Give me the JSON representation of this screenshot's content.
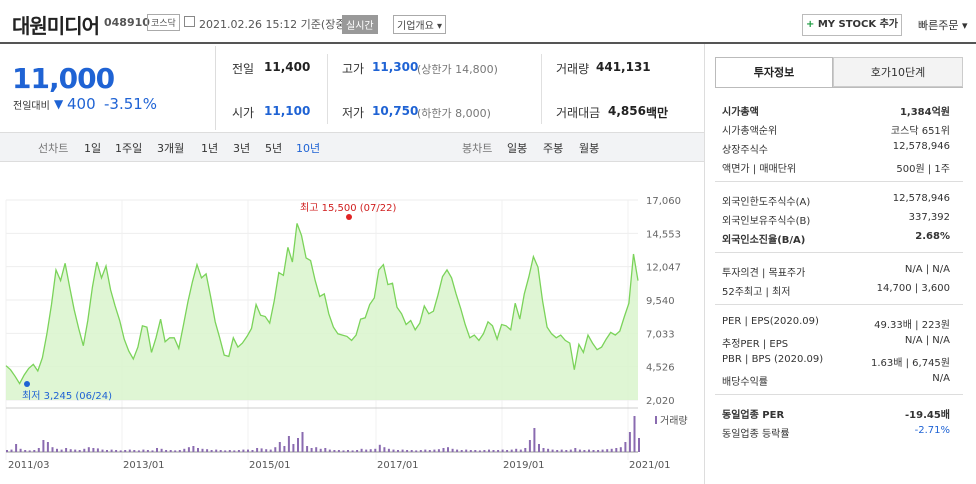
{
  "header": {
    "stock_name": "대원미디어",
    "stock_code": "048910",
    "market": "코스닥",
    "timestamp": "2021.02.26 15:12 기준(장중)",
    "realtime": "실시간",
    "company_info": "기업개요 ▾",
    "my_stock_label": "MY STOCK 추가",
    "quick_order": "빠른주문 ▾"
  },
  "price": {
    "current": "11,000",
    "change_label": "전일대비",
    "change_value": "400",
    "change_pct": "-3.51%"
  },
  "quote": {
    "prev_label": "전일",
    "prev": "11,400",
    "high_label": "고가",
    "high": "11,300",
    "upper_limit": "(상한가 14,800)",
    "volume_label": "거래량",
    "volume": "441,131",
    "open_label": "시가",
    "open": "11,100",
    "low_label": "저가",
    "low": "10,750",
    "lower_limit": "(하한가 8,000)",
    "amount_label": "거래대금",
    "amount": "4,856",
    "amount_unit": "백만"
  },
  "tabs": {
    "line_chart": "선차트",
    "periods": [
      "1일",
      "1주일",
      "3개월",
      "1년",
      "3년",
      "5년",
      "10년"
    ],
    "candle_chart": "봉차트",
    "candles": [
      "일봉",
      "주봉",
      "월봉"
    ]
  },
  "chart_data": {
    "type": "area",
    "y_ticks": [
      "17,060",
      "14,553",
      "12,047",
      "9,540",
      "7,033",
      "4,526",
      "2,020"
    ],
    "ylim": [
      2020,
      17060
    ],
    "x_ticks": [
      "2011/03",
      "2013/01",
      "2015/01",
      "2017/01",
      "2019/01",
      "2021/01"
    ],
    "max_label": "최고 15,500 (07/22)",
    "min_label": "최저 3,245 (06/24)",
    "volume_legend": "거래량",
    "accent": "#7bd35a",
    "values": [
      4600,
      4300,
      3800,
      3250,
      3900,
      4400,
      4700,
      4200,
      5200,
      7000,
      9200,
      11800,
      11000,
      12300,
      10500,
      8800,
      7400,
      6100,
      8000,
      10500,
      12400,
      11200,
      12100,
      10300,
      9100,
      8000,
      6600,
      5700,
      5100,
      6000,
      7600,
      7500,
      5600,
      6700,
      8100,
      6400,
      6700,
      6700,
      5900,
      7600,
      9400,
      10900,
      12200,
      11200,
      11500,
      9800,
      7900,
      6700,
      5400,
      5300,
      6700,
      6000,
      6300,
      6800,
      7400,
      9200,
      8400,
      8300,
      7800,
      9500,
      11600,
      11400,
      13500,
      12400,
      15300,
      14400,
      12700,
      12500,
      11000,
      9800,
      10000,
      8500,
      7500,
      7000,
      6900,
      6800,
      6500,
      6900,
      8100,
      8200,
      9200,
      9700,
      11800,
      12200,
      10700,
      10800,
      9000,
      8500,
      7700,
      8000,
      7300,
      7800,
      9100,
      8500,
      8700,
      9900,
      11300,
      11800,
      11200,
      10000,
      8900,
      7700,
      6700,
      6900,
      6500,
      7000,
      7900,
      7600,
      6600,
      7700,
      7600,
      7300,
      9300,
      8100,
      10000,
      11300,
      12800,
      12000,
      9500,
      7500,
      7000,
      6700,
      6900,
      6500,
      6300,
      4300,
      6200,
      5600,
      6900,
      6300,
      5800,
      6000,
      6600,
      7100,
      6900,
      7200,
      8300,
      9300,
      13000,
      11000
    ],
    "volumes": [
      0.05,
      0.06,
      0.2,
      0.08,
      0.05,
      0.04,
      0.05,
      0.1,
      0.3,
      0.25,
      0.12,
      0.08,
      0.06,
      0.1,
      0.07,
      0.06,
      0.05,
      0.08,
      0.12,
      0.1,
      0.09,
      0.06,
      0.05,
      0.06,
      0.05,
      0.04,
      0.05,
      0.06,
      0.05,
      0.04,
      0.06,
      0.05,
      0.04,
      0.1,
      0.08,
      0.05,
      0.05,
      0.04,
      0.05,
      0.08,
      0.12,
      0.15,
      0.1,
      0.08,
      0.07,
      0.05,
      0.06,
      0.05,
      0.04,
      0.05,
      0.04,
      0.05,
      0.06,
      0.06,
      0.05,
      0.1,
      0.09,
      0.07,
      0.06,
      0.12,
      0.25,
      0.15,
      0.4,
      0.2,
      0.35,
      0.5,
      0.15,
      0.1,
      0.12,
      0.08,
      0.1,
      0.06,
      0.05,
      0.05,
      0.04,
      0.05,
      0.04,
      0.05,
      0.08,
      0.06,
      0.07,
      0.08,
      0.18,
      0.12,
      0.08,
      0.06,
      0.05,
      0.06,
      0.05,
      0.05,
      0.04,
      0.05,
      0.06,
      0.05,
      0.06,
      0.07,
      0.1,
      0.12,
      0.08,
      0.06,
      0.05,
      0.06,
      0.05,
      0.05,
      0.04,
      0.05,
      0.06,
      0.05,
      0.05,
      0.06,
      0.05,
      0.06,
      0.08,
      0.06,
      0.1,
      0.3,
      0.6,
      0.2,
      0.1,
      0.08,
      0.06,
      0.05,
      0.06,
      0.05,
      0.06,
      0.1,
      0.06,
      0.05,
      0.06,
      0.05,
      0.05,
      0.06,
      0.07,
      0.08,
      0.1,
      0.12,
      0.25,
      0.5,
      0.9,
      0.35
    ]
  },
  "right_panel": {
    "tab_invest": "투자정보",
    "tab_quote": "호가10단계",
    "market_cap_label": "시가총액",
    "market_cap": "1,384억원",
    "market_cap_rank_label": "시가총액순위",
    "market_cap_rank": "코스닥 651위",
    "shares_label": "상장주식수",
    "shares": "12,578,946",
    "par_label": "액면가 | 매매단위",
    "par": "500원 | 1주",
    "foreign_limit_label": "외국인한도주식수(A)",
    "foreign_limit": "12,578,946",
    "foreign_hold_label": "외국인보유주식수(B)",
    "foreign_hold": "337,392",
    "foreign_ratio_label": "외국인소진율(B/A)",
    "foreign_ratio": "2.68%",
    "opinion_label": "투자의견 | 목표주가",
    "opinion": "N/A | N/A",
    "week52_label": "52주최고 | 최저",
    "week52": "14,700 | 3,600",
    "per_label": "PER | EPS(2020.09)",
    "per": "49.33배 | 223원",
    "est_per_label": "추정PER | EPS",
    "est_per": "N/A | N/A",
    "pbr_label": "PBR | BPS (2020.09)",
    "pbr": "1.63배 | 6,745원",
    "dividend_label": "배당수익률",
    "dividend": "N/A",
    "sector_per_label": "동일업종 PER",
    "sector_per": "-19.45배",
    "sector_change_label": "동일업종 등락률",
    "sector_change": "-2.71%"
  }
}
